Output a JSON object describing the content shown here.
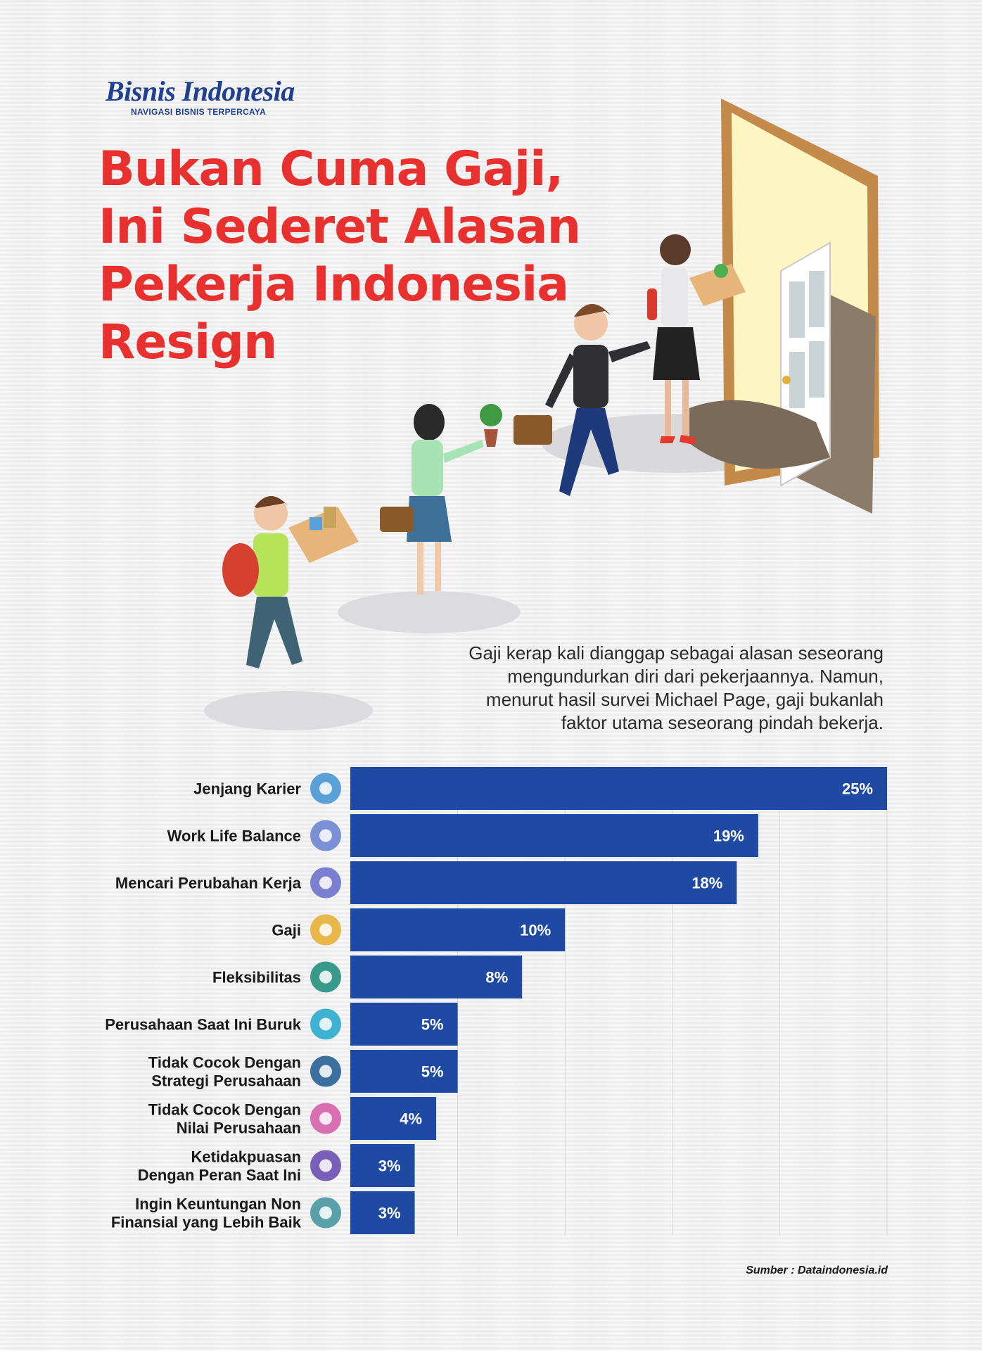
{
  "brand": {
    "name": "Bisnis Indonesia",
    "tagline": "NAVIGASI BISNIS TERPERCAYA"
  },
  "title_lines": [
    "Bukan Cuma Gaji,",
    "Ini Sederet Alasan",
    "Pekerja Indonesia",
    "Resign"
  ],
  "intro_lines": [
    "Gaji kerap kali dianggap sebagai alasan seseorang",
    "mengundurkan diri dari pekerjaannya. Namun,",
    "menurut hasil survei Michael Page, gaji bukanlah",
    "faktor utama seseorang pindah bekerja."
  ],
  "chart_data": {
    "type": "bar",
    "orientation": "horizontal",
    "categories": [
      "Jenjang Karier",
      "Work Life Balance",
      "Mencari Perubahan Kerja",
      "Gaji",
      "Fleksibilitas",
      "Perusahaan Saat Ini Buruk",
      "Tidak Cocok Dengan Strategi Perusahaan",
      "Tidak Cocok Dengan Nilai Perusahaan",
      "Ketidakpuasan Dengan Peran Saat Ini",
      "Ingin Keuntungan Non Finansial yang Lebih Baik"
    ],
    "values": [
      25,
      19,
      18,
      10,
      8,
      5,
      5,
      4,
      3,
      3
    ],
    "value_labels": [
      "25%",
      "19%",
      "18%",
      "10%",
      "8%",
      "5%",
      "5%",
      "4%",
      "3%",
      "3%"
    ],
    "category_label_lines": [
      [
        "Jenjang Karier"
      ],
      [
        "Work Life Balance"
      ],
      [
        "Mencari Perubahan Kerja"
      ],
      [
        "Gaji"
      ],
      [
        "Fleksibilitas"
      ],
      [
        "Perusahaan Saat Ini Buruk"
      ],
      [
        "Tidak Cocok Dengan",
        "Strategi Perusahaan"
      ],
      [
        "Tidak Cocok Dengan",
        "Nilai Perusahaan"
      ],
      [
        "Ketidakpuasan",
        "Dengan Peran Saat Ini"
      ],
      [
        "Ingin Keuntungan Non",
        "Finansial yang Lebih Baik"
      ]
    ],
    "category_icons": [
      "career-ladder-icon",
      "balance-scale-icon",
      "work-change-icon",
      "money-icon",
      "flexibility-icon",
      "company-building-icon",
      "strategy-team-icon",
      "company-values-icon",
      "role-dissatisfaction-icon",
      "non-financial-benefit-icon"
    ],
    "unit": "%",
    "xlim": [
      0,
      25
    ],
    "grid": true,
    "bar_color": "#1f4aa3"
  },
  "source": "Sumber : Dataindonesia.id"
}
